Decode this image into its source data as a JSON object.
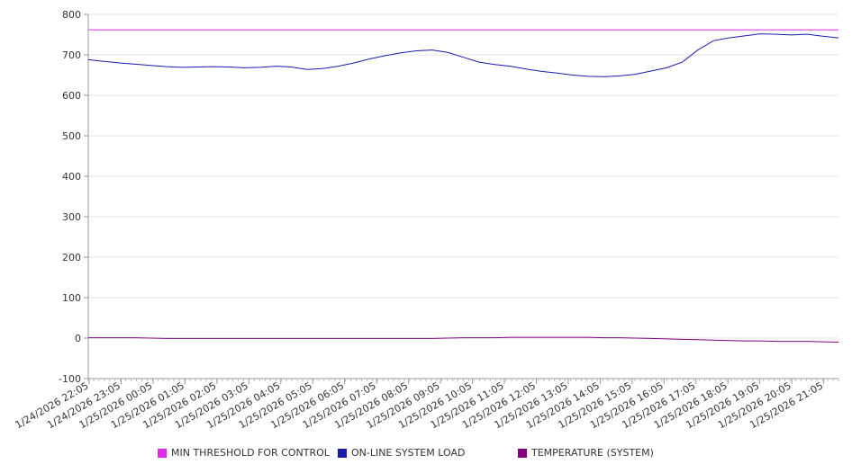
{
  "chart_data": {
    "type": "line",
    "title": "",
    "xlabel": "",
    "ylabel": "",
    "ylim": [
      -100,
      800
    ],
    "y_ticks": [
      800,
      700,
      600,
      500,
      400,
      300,
      200,
      100,
      0,
      -100
    ],
    "x_tick_labels": [
      "1/24/2026 22:05",
      "1/24/2026 23:05",
      "1/25/2026 00:05",
      "1/25/2026 01:05",
      "1/25/2026 02:05",
      "1/25/2026 03:05",
      "1/25/2026 04:05",
      "1/25/2026 05:05",
      "1/25/2026 06:05",
      "1/25/2026 07:05",
      "1/25/2026 08:05",
      "1/25/2026 09:05",
      "1/25/2026 10:05",
      "1/25/2026 11:05",
      "1/25/2026 12:05",
      "1/25/2026 13:05",
      "1/25/2026 14:05",
      "1/25/2026 15:05",
      "1/25/2026 16:05",
      "1/25/2026 17:05",
      "1/25/2026 18:05",
      "1/25/2026 19:05",
      "1/25/2026 20:05",
      "1/25/2026 21:05"
    ],
    "x": [
      "1/24/2026 22:05",
      "1/24/2026 22:35",
      "1/24/2026 23:05",
      "1/24/2026 23:35",
      "1/25/2026 00:05",
      "1/25/2026 00:35",
      "1/25/2026 01:05",
      "1/25/2026 01:35",
      "1/25/2026 02:05",
      "1/25/2026 02:35",
      "1/25/2026 03:05",
      "1/25/2026 03:35",
      "1/25/2026 04:05",
      "1/25/2026 04:35",
      "1/25/2026 05:05",
      "1/25/2026 05:35",
      "1/25/2026 06:05",
      "1/25/2026 06:35",
      "1/25/2026 07:05",
      "1/25/2026 07:35",
      "1/25/2026 08:05",
      "1/25/2026 08:35",
      "1/25/2026 09:05",
      "1/25/2026 09:35",
      "1/25/2026 10:05",
      "1/25/2026 10:35",
      "1/25/2026 11:05",
      "1/25/2026 11:35",
      "1/25/2026 12:05",
      "1/25/2026 12:35",
      "1/25/2026 13:05",
      "1/25/2026 13:35",
      "1/25/2026 14:05",
      "1/25/2026 14:35",
      "1/25/2026 15:05",
      "1/25/2026 15:35",
      "1/25/2026 16:05",
      "1/25/2026 16:35",
      "1/25/2026 17:05",
      "1/25/2026 17:35",
      "1/25/2026 18:05",
      "1/25/2026 18:35",
      "1/25/2026 19:05",
      "1/25/2026 19:35",
      "1/25/2026 20:05",
      "1/25/2026 20:35",
      "1/25/2026 21:05",
      "1/25/2026 21:35",
      "1/25/2026 22:05"
    ],
    "series": [
      {
        "name": "MIN THRESHOLD FOR CONTROL",
        "color": "#e22be2",
        "values": [
          762,
          762,
          762,
          762,
          762,
          762,
          762,
          762,
          762,
          762,
          762,
          762,
          762,
          762,
          762,
          762,
          762,
          762,
          762,
          762,
          762,
          762,
          762,
          762,
          762,
          762,
          762,
          762,
          762,
          762,
          762,
          762,
          762,
          762,
          762,
          762,
          762,
          762,
          762,
          762,
          762,
          762,
          762,
          762,
          762,
          762,
          762,
          762,
          762
        ]
      },
      {
        "name": "ON-LINE SYSTEM LOAD",
        "color": "#1a1ab0",
        "values": [
          688,
          684,
          680,
          677,
          674,
          671,
          669,
          670,
          671,
          670,
          668,
          669,
          672,
          670,
          664,
          666,
          672,
          680,
          690,
          698,
          705,
          710,
          712,
          706,
          694,
          682,
          676,
          672,
          665,
          659,
          655,
          650,
          647,
          646,
          648,
          652,
          660,
          668,
          682,
          712,
          735,
          742,
          747,
          752,
          751,
          749,
          751,
          746,
          742
        ]
      },
      {
        "name": "TEMPERATURE (SYSTEM)",
        "color": "#800080",
        "values": [
          1,
          1,
          1,
          1,
          0,
          -1,
          -1,
          -1,
          -1,
          -1,
          -1,
          -1,
          -1,
          -1,
          -1,
          -1,
          -1,
          -1,
          -1,
          -1,
          -1,
          -1,
          -1,
          0,
          1,
          1,
          1,
          2,
          2,
          2,
          2,
          2,
          2,
          1,
          1,
          0,
          -1,
          -2,
          -3,
          -4,
          -5,
          -6,
          -7,
          -7,
          -8,
          -8,
          -8,
          -9,
          -10
        ]
      }
    ],
    "grid": true,
    "legend_position": "bottom"
  }
}
